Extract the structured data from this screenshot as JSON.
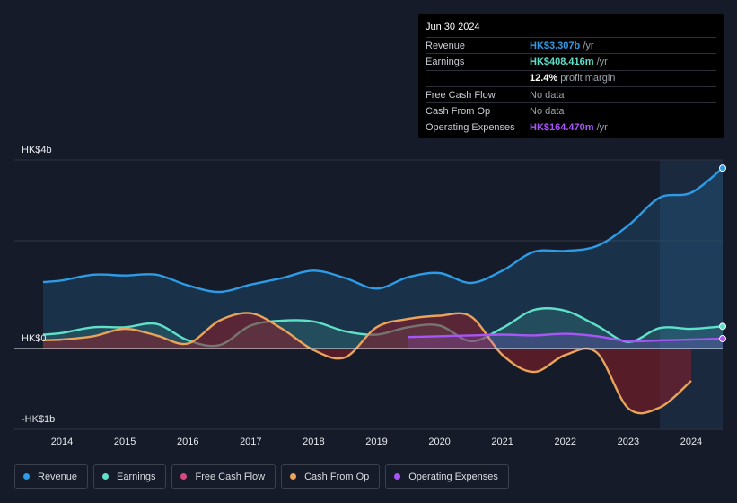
{
  "tooltip": {
    "date": "Jun 30 2024",
    "rows": [
      {
        "label": "Revenue",
        "value": "HK$3.307b",
        "unit": " /yr",
        "color": "#2e9be6"
      },
      {
        "label": "Earnings",
        "value": "HK$408.416m",
        "unit": " /yr",
        "color": "#5fe0c8"
      },
      {
        "label": "",
        "value": "12.4%",
        "unit": " profit margin",
        "color": "#ffffff"
      },
      {
        "label": "Free Cash Flow",
        "value": "",
        "unit": "No data",
        "color": "#8a8f99"
      },
      {
        "label": "Cash From Op",
        "value": "",
        "unit": "No data",
        "color": "#8a8f99"
      },
      {
        "label": "Operating Expenses",
        "value": "HK$164.470m",
        "unit": " /yr",
        "color": "#a855f7"
      }
    ]
  },
  "legend": [
    {
      "label": "Revenue",
      "color": "#2e9be6"
    },
    {
      "label": "Earnings",
      "color": "#5fe0c8"
    },
    {
      "label": "Free Cash Flow",
      "color": "#d8477e"
    },
    {
      "label": "Cash From Op",
      "color": "#e9a35b"
    },
    {
      "label": "Operating Expenses",
      "color": "#a855f7"
    }
  ],
  "chart_data": {
    "type": "area",
    "y_tick_labels": [
      "HK$4b",
      "HK$0",
      "-HK$1b"
    ],
    "ylim": [
      -1.0,
      2.3
    ],
    "xlim": [
      2013.7,
      2024.5
    ],
    "x_tick_labels": [
      "2014",
      "2015",
      "2016",
      "2017",
      "2018",
      "2019",
      "2020",
      "2021",
      "2022",
      "2023",
      "2024"
    ],
    "x_ticks": [
      2014,
      2015,
      2016,
      2017,
      2018,
      2019,
      2020,
      2021,
      2022,
      2023,
      2024
    ],
    "highlight_start": 2023.5,
    "series": [
      {
        "name": "Revenue",
        "color": "#2e9be6",
        "fill": true,
        "x": [
          2013.7,
          2014.0,
          2014.5,
          2015.0,
          2015.5,
          2016.0,
          2016.5,
          2017.0,
          2017.5,
          2018.0,
          2018.5,
          2019.0,
          2019.5,
          2020.0,
          2020.5,
          2021.0,
          2021.5,
          2022.0,
          2022.5,
          2023.0,
          2023.5,
          2024.0,
          2024.5
        ],
        "y": [
          0.81,
          0.83,
          0.9,
          0.89,
          0.9,
          0.77,
          0.69,
          0.78,
          0.86,
          0.95,
          0.86,
          0.73,
          0.87,
          0.92,
          0.8,
          0.95,
          1.18,
          1.19,
          1.25,
          1.5,
          1.84,
          1.9,
          2.2
        ]
      },
      {
        "name": "Earnings",
        "color": "#5fe0c8",
        "fill": true,
        "x": [
          2013.7,
          2014.0,
          2014.5,
          2015.0,
          2015.5,
          2016.0,
          2016.5,
          2017.0,
          2017.5,
          2018.0,
          2018.5,
          2019.0,
          2019.5,
          2020.0,
          2020.5,
          2021.0,
          2021.5,
          2022.0,
          2022.5,
          2023.0,
          2023.5,
          2024.0,
          2024.5
        ],
        "y": [
          0.17,
          0.19,
          0.26,
          0.26,
          0.3,
          0.1,
          0.04,
          0.28,
          0.34,
          0.33,
          0.21,
          0.17,
          0.26,
          0.28,
          0.09,
          0.25,
          0.47,
          0.46,
          0.28,
          0.08,
          0.25,
          0.24,
          0.27
        ]
      },
      {
        "name": "Cash From Op",
        "color": "#e9a35b",
        "fill": true,
        "x": [
          2013.7,
          2014.0,
          2014.5,
          2015.0,
          2015.5,
          2016.0,
          2016.5,
          2017.0,
          2017.5,
          2018.0,
          2018.5,
          2019.0,
          2019.5,
          2020.0,
          2020.5,
          2021.0,
          2021.5,
          2022.0,
          2022.5,
          2023.0,
          2023.5,
          2024.0
        ],
        "y": [
          0.1,
          0.11,
          0.15,
          0.24,
          0.16,
          0.06,
          0.34,
          0.43,
          0.24,
          -0.02,
          -0.11,
          0.26,
          0.36,
          0.4,
          0.39,
          -0.08,
          -0.29,
          -0.08,
          -0.05,
          -0.74,
          -0.73,
          -0.4
        ]
      },
      {
        "name": "Operating Expenses",
        "color": "#a855f7",
        "fill": true,
        "x": [
          2019.5,
          2020.0,
          2020.5,
          2021.0,
          2021.5,
          2022.0,
          2022.5,
          2023.0,
          2023.5,
          2024.0,
          2024.5
        ],
        "y": [
          0.14,
          0.15,
          0.16,
          0.17,
          0.16,
          0.18,
          0.15,
          0.09,
          0.1,
          0.11,
          0.12
        ]
      }
    ]
  }
}
